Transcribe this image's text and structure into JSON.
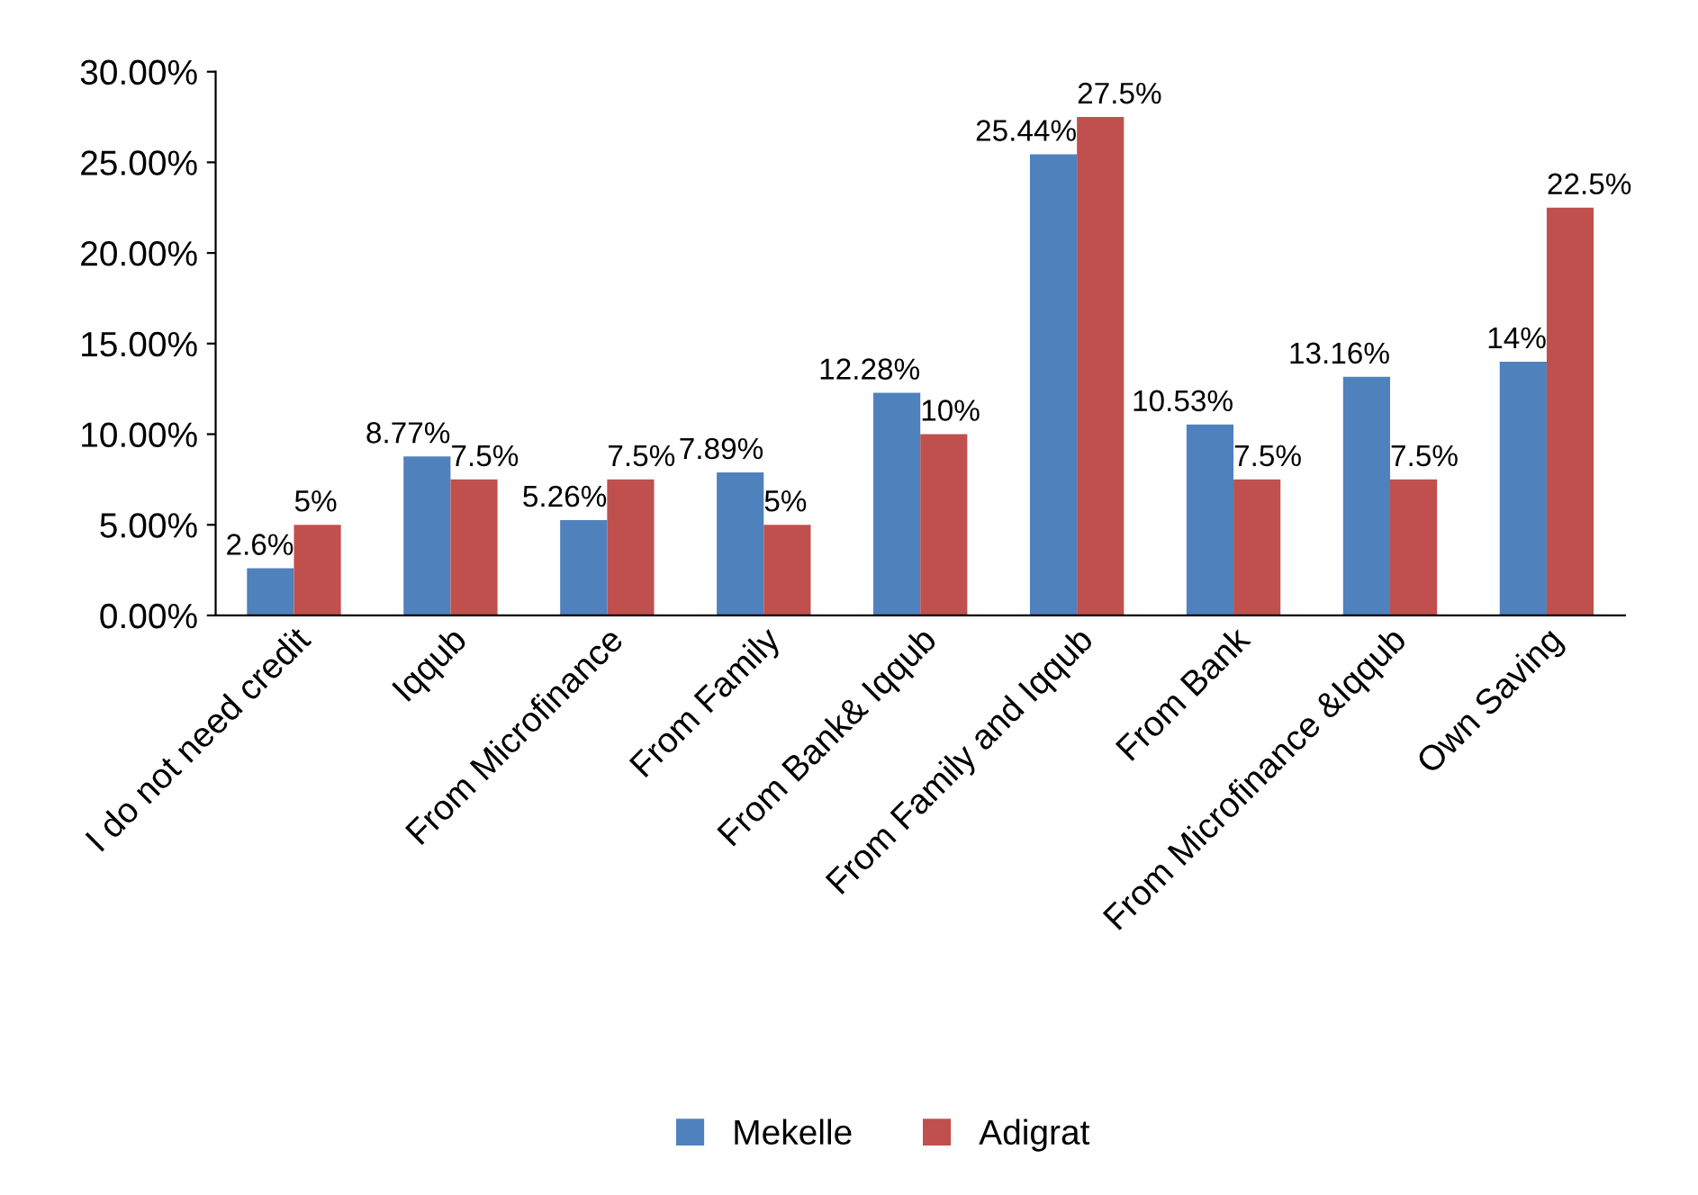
{
  "chart_data": {
    "type": "bar",
    "categories": [
      "I do not need credit",
      "Iqqub",
      "From Microfinance",
      "From Family",
      "From Bank& Iqqub",
      "From Family and Iqqub",
      "From Bank",
      "From Microfinance &Iqqub",
      "Own Saving"
    ],
    "series": [
      {
        "name": "Mekelle",
        "color": "#4f81bd",
        "values": [
          2.6,
          8.77,
          5.26,
          7.89,
          12.28,
          25.44,
          10.53,
          13.16,
          14
        ],
        "value_labels": [
          "2.6%",
          "8.77%",
          "5.26%",
          "7.89%",
          "12.28%",
          "25.44%",
          "10.53%",
          "13.16%",
          "14%"
        ]
      },
      {
        "name": "Adigrat",
        "color": "#c0504d",
        "values": [
          5,
          7.5,
          7.5,
          5,
          10,
          27.5,
          7.5,
          7.5,
          22.5
        ],
        "value_labels": [
          "5%",
          "7.5%",
          "7.5%",
          "5%",
          "10%",
          "27.5%",
          "7.5%",
          "7.5%",
          "22.5%"
        ]
      }
    ],
    "ylim": [
      0,
      30
    ],
    "yticks": [
      {
        "value": 0,
        "label": "0.00%"
      },
      {
        "value": 5,
        "label": "5.00%"
      },
      {
        "value": 10,
        "label": "10.00%"
      },
      {
        "value": 15,
        "label": "15.00%"
      },
      {
        "value": 20,
        "label": "20.00%"
      },
      {
        "value": 25,
        "label": "25.00%"
      },
      {
        "value": 30,
        "label": "30.00%"
      }
    ],
    "grid": false,
    "legend": "bottom"
  }
}
